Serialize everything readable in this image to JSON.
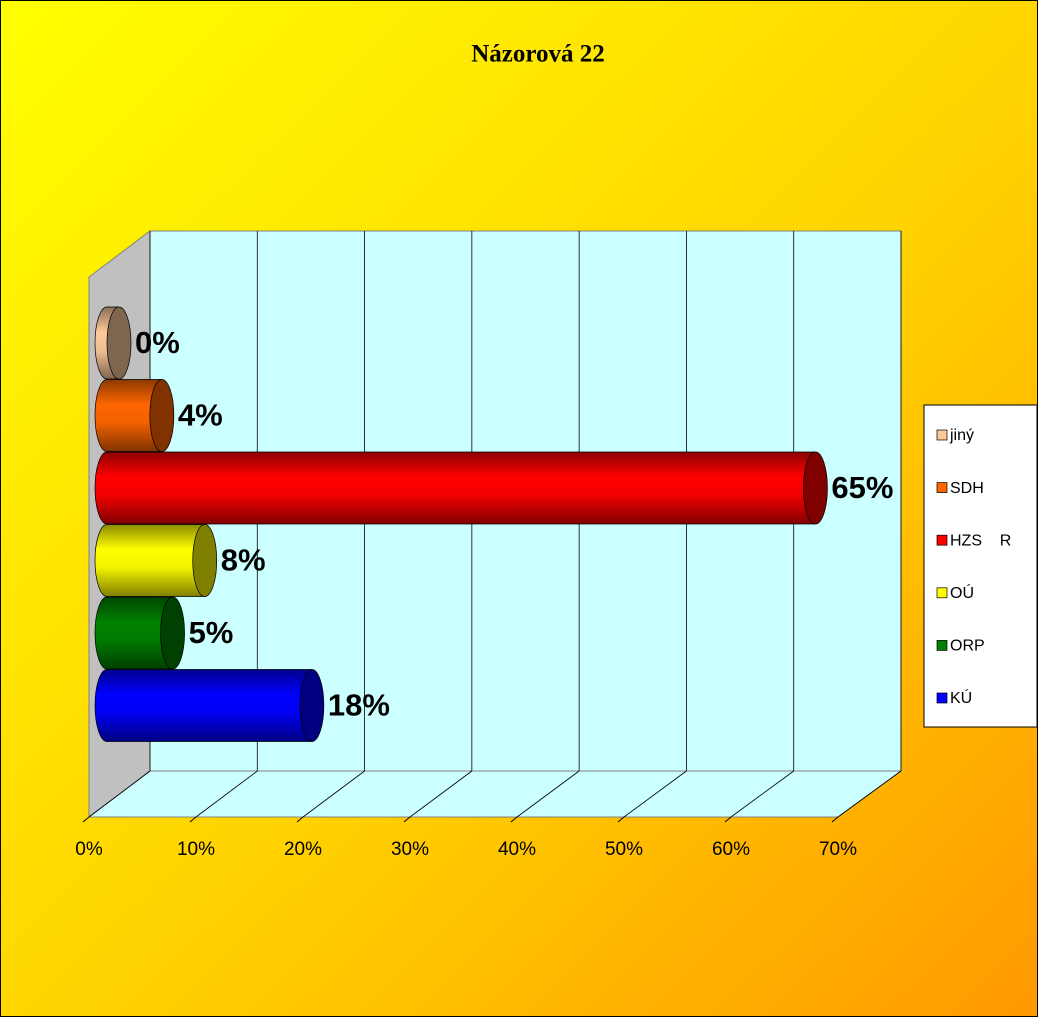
{
  "chart_data": {
    "type": "bar",
    "orientation": "horizontal",
    "title": "Názorová 22",
    "series": [
      {
        "name": "jiný",
        "color": "#fcc99a",
        "values": [
          0
        ],
        "value_labels": [
          "0%"
        ]
      },
      {
        "name": "SDH",
        "color": "#ff6600",
        "values": [
          4
        ],
        "value_labels": [
          "4%"
        ]
      },
      {
        "name": "HZS    R",
        "color": "#ff0000",
        "values": [
          65
        ],
        "value_labels": [
          "65%"
        ]
      },
      {
        "name": "OÚ",
        "color": "#ffff00",
        "values": [
          8
        ],
        "value_labels": [
          "8%"
        ]
      },
      {
        "name": "ORP",
        "color": "#008000",
        "values": [
          5
        ],
        "value_labels": [
          "5%"
        ]
      },
      {
        "name": "KÚ",
        "color": "#0000ff",
        "values": [
          18
        ],
        "value_labels": [
          "18%"
        ]
      }
    ],
    "xlim": [
      0,
      70
    ],
    "xticks": [
      {
        "value": 0,
        "label": "0%"
      },
      {
        "value": 10,
        "label": "10%"
      },
      {
        "value": 20,
        "label": "20%"
      },
      {
        "value": 30,
        "label": "30%"
      },
      {
        "value": 40,
        "label": "40%"
      },
      {
        "value": 50,
        "label": "50%"
      },
      {
        "value": 60,
        "label": "60%"
      },
      {
        "value": 70,
        "label": "70%"
      }
    ],
    "grid": true,
    "legend": "right"
  }
}
